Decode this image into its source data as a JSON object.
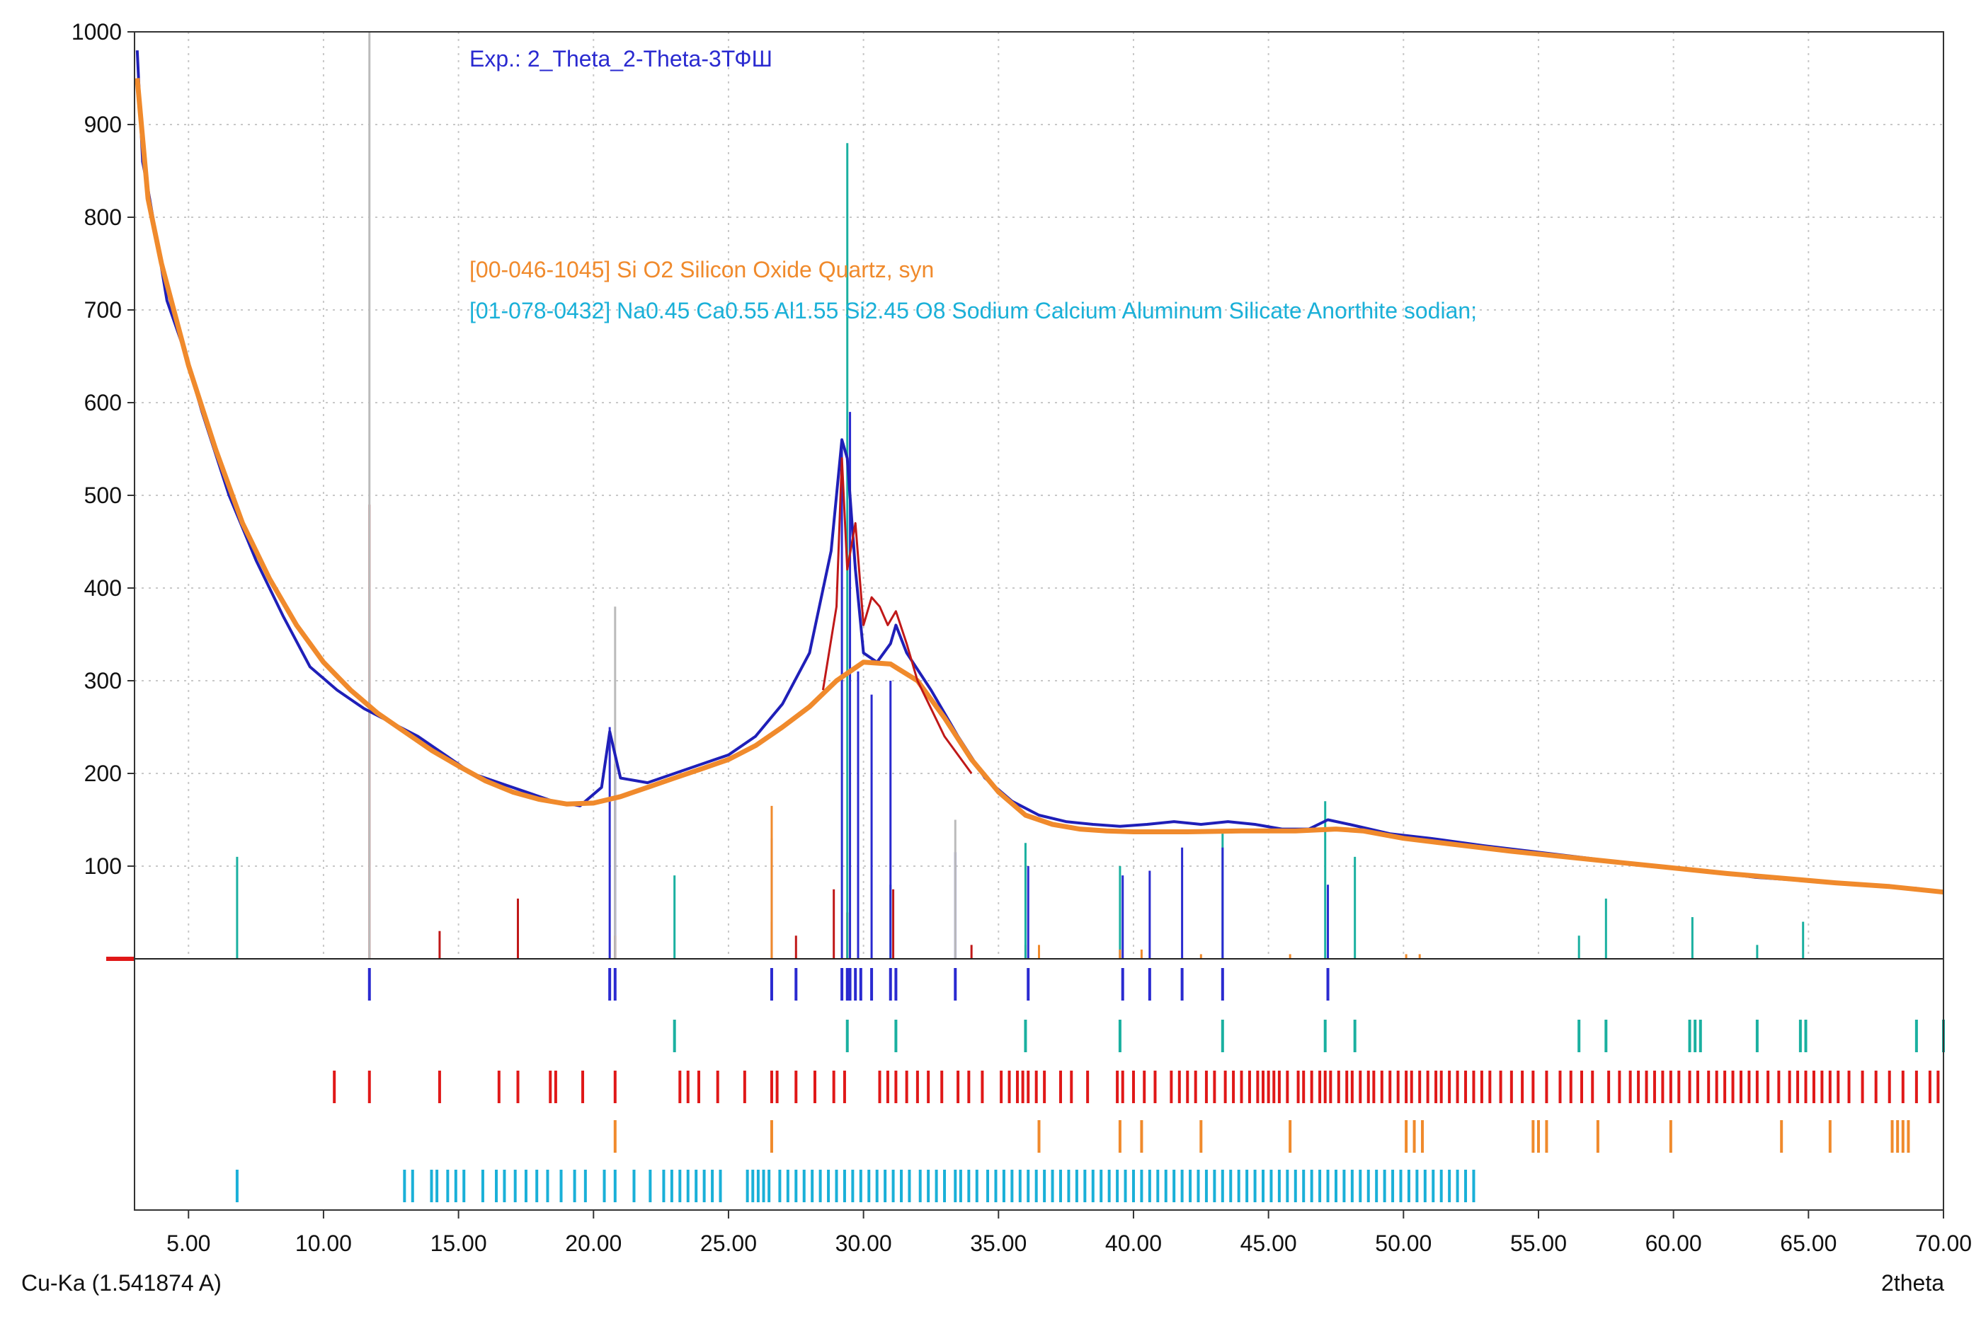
{
  "chart_data": {
    "type": "line",
    "x_axis_label": "2theta",
    "wavelength_label": "Cu-Ka (1.541874 A)",
    "xlim": [
      3.0,
      70.0
    ],
    "ylim": [
      0,
      1000
    ],
    "y_ticks": [
      100,
      200,
      300,
      400,
      500,
      600,
      700,
      800,
      900,
      1000
    ],
    "x_ticks": [
      5,
      10,
      15,
      20,
      25,
      30,
      35,
      40,
      45,
      50,
      55,
      60,
      65,
      70
    ],
    "x_tick_labels": [
      "5.00",
      "10.00",
      "15.00",
      "20.00",
      "25.00",
      "30.00",
      "35.00",
      "40.00",
      "45.00",
      "50.00",
      "55.00",
      "60.00",
      "65.00",
      "70.00"
    ],
    "y_tick_labels": [
      "100",
      "200",
      "300",
      "400",
      "500",
      "600",
      "700",
      "800",
      "900",
      "1000"
    ],
    "grid": true,
    "legend": [
      {
        "text": "Exp.: 2_Theta_2-Theta-3ТФШ",
        "color": "#2a2ad0"
      },
      {
        "text": "[00-046-1045] Si O2 Silicon Oxide Quartz, syn",
        "color": "#f08a2c"
      },
      {
        "text": "[01-078-0432] Na0.45 Ca0.55 Al1.55 Si2.45 O8 Sodium Calcium Aluminum Silicate Anorthite sodian;",
        "color": "#1ab0d8"
      }
    ],
    "series": [
      {
        "color": "#1f1fb8",
        "x": [
          3.1,
          3.3,
          3.5,
          3.8,
          4.2,
          4.8,
          5.5,
          6.5,
          7.5,
          8.5,
          9.5,
          10.5,
          11.5,
          12.5,
          13.5,
          14.5,
          15.5,
          16.5,
          17.5,
          18.5,
          19.5,
          20.3,
          20.6,
          21.0,
          22.0,
          23.0,
          24.0,
          25.0,
          26.0,
          27.0,
          28.0,
          28.8,
          29.2,
          29.4,
          29.7,
          30.0,
          30.5,
          31.0,
          31.2,
          31.6,
          32.5,
          33.5,
          34.5,
          35.5,
          36.5,
          37.5,
          38.5,
          39.5,
          40.5,
          41.5,
          42.5,
          43.5,
          44.5,
          45.5,
          46.5,
          47.2,
          48.0,
          49.5,
          51.0,
          53.0,
          55.0,
          57.0,
          59.0,
          61.0,
          63.0,
          65.0,
          67.0,
          69.0,
          70.0
        ],
        "y": [
          980,
          860,
          830,
          780,
          710,
          660,
          590,
          500,
          430,
          370,
          315,
          290,
          270,
          255,
          240,
          220,
          200,
          190,
          180,
          170,
          165,
          185,
          245,
          195,
          190,
          200,
          210,
          220,
          240,
          275,
          330,
          440,
          560,
          540,
          420,
          330,
          320,
          340,
          360,
          330,
          290,
          240,
          195,
          170,
          155,
          148,
          145,
          143,
          145,
          148,
          145,
          148,
          145,
          140,
          140,
          150,
          145,
          135,
          130,
          122,
          115,
          108,
          100,
          95,
          88,
          84,
          80,
          76,
          72
        ]
      },
      {
        "color": "#f08a2c",
        "x": [
          3.1,
          3.5,
          4.0,
          5.0,
          6.0,
          7.0,
          8.0,
          9.0,
          10.0,
          11.0,
          12.0,
          13.0,
          14.0,
          15.0,
          16.0,
          17.0,
          18.0,
          19.0,
          20.0,
          21.0,
          22.0,
          23.0,
          24.0,
          25.0,
          26.0,
          27.0,
          28.0,
          29.0,
          30.0,
          31.0,
          32.0,
          33.0,
          34.0,
          35.0,
          36.0,
          37.0,
          38.0,
          39.0,
          40.0,
          42.0,
          44.0,
          46.0,
          47.5,
          48.5,
          50.0,
          52.0,
          54.0,
          56.0,
          58.0,
          60.0,
          62.0,
          64.0,
          66.0,
          68.0,
          70.0
        ],
        "y": [
          950,
          820,
          750,
          640,
          550,
          470,
          410,
          360,
          320,
          290,
          265,
          245,
          225,
          208,
          192,
          180,
          172,
          167,
          168,
          175,
          185,
          195,
          205,
          215,
          230,
          250,
          272,
          300,
          320,
          318,
          300,
          260,
          215,
          180,
          155,
          145,
          140,
          138,
          137,
          137,
          138,
          138,
          140,
          138,
          130,
          123,
          116,
          110,
          104,
          98,
          92,
          87,
          82,
          78,
          72
        ]
      },
      {
        "color": "#c01818",
        "x": [
          28.5,
          29.0,
          29.2,
          29.4,
          29.7,
          30.0,
          30.3,
          30.6,
          30.9,
          31.2,
          31.6,
          32.0,
          32.5,
          33.0,
          34.0
        ],
        "y": [
          290,
          380,
          540,
          420,
          470,
          360,
          390,
          380,
          360,
          375,
          340,
          300,
          270,
          240,
          200
        ]
      }
    ],
    "sticks": [
      {
        "color": "#c01818",
        "x": [
          11.7,
          14.3,
          17.2,
          20.8,
          26.6,
          27.5,
          28.9,
          29.4,
          31.1,
          34.0,
          36.0,
          39.5
        ],
        "y": [
          490,
          30,
          65,
          25,
          40,
          25,
          75,
          50,
          75,
          15,
          15,
          10
        ]
      },
      {
        "color": "#1ab0a0",
        "x": [
          6.8,
          23.0,
          29.4,
          31.0,
          36.0,
          39.5,
          43.3,
          47.1,
          48.2,
          56.5,
          57.5,
          60.7,
          63.1,
          64.8
        ],
        "y": [
          110,
          90,
          880,
          80,
          125,
          100,
          135,
          170,
          110,
          25,
          65,
          45,
          15,
          40
        ]
      },
      {
        "color": "#2a2ad0",
        "x": [
          20.6,
          20.8,
          26.6,
          29.2,
          29.5,
          29.8,
          30.3,
          31.0,
          33.4,
          36.1,
          39.6,
          40.6,
          41.8,
          43.3,
          47.2
        ],
        "y": [
          250,
          210,
          130,
          560,
          590,
          310,
          285,
          300,
          115,
          100,
          90,
          95,
          120,
          120,
          80
        ]
      },
      {
        "color": "#f08a2c",
        "x": [
          20.8,
          26.6,
          36.5,
          39.5,
          40.3,
          42.5,
          45.8,
          50.1,
          50.6
        ],
        "y": [
          25,
          165,
          15,
          10,
          10,
          5,
          5,
          5,
          5
        ]
      },
      {
        "color": "#bbbbbb",
        "x": [
          11.7,
          20.8,
          33.4
        ],
        "y": [
          1000,
          380,
          150
        ]
      }
    ],
    "tick_rows": [
      {
        "color": "#2a2ad0",
        "x": [
          11.7,
          20.6,
          20.8,
          26.6,
          27.5,
          29.2,
          29.4,
          29.5,
          29.7,
          29.9,
          30.3,
          31.0,
          31.2,
          33.4,
          36.1,
          39.6,
          40.6,
          41.8,
          43.3,
          47.2
        ]
      },
      {
        "color": "#1ab0a0",
        "x": [
          23.0,
          29.4,
          31.2,
          36.0,
          39.5,
          43.3,
          47.1,
          48.2,
          56.5,
          57.5,
          60.6,
          60.8,
          61.0,
          63.1,
          64.7,
          64.9,
          69.0,
          70.0
        ]
      },
      {
        "color": "#e01818",
        "x": [
          10.4,
          11.7,
          14.3,
          16.5,
          17.2,
          18.4,
          18.6,
          19.6,
          20.8,
          23.2,
          23.5,
          23.9,
          24.6,
          25.6,
          26.6,
          26.8,
          27.5,
          28.2,
          28.9,
          29.3,
          30.6,
          30.9,
          31.2,
          31.6,
          32.0,
          32.4,
          32.9,
          33.5,
          33.9,
          34.4,
          35.1,
          35.4,
          35.7,
          35.9,
          36.1,
          36.4,
          36.7,
          37.3,
          37.7,
          38.3,
          39.4,
          39.6,
          40.0,
          40.4,
          40.8,
          41.4,
          41.7,
          42.0,
          42.3,
          42.7,
          43.0,
          43.4,
          43.7,
          44.0,
          44.3,
          44.6,
          44.8,
          45.0,
          45.2,
          45.4,
          45.7,
          46.1,
          46.3,
          46.6,
          46.9,
          47.1,
          47.3,
          47.6,
          47.9,
          48.1,
          48.4,
          48.7,
          48.9,
          49.2,
          49.5,
          49.8,
          50.1,
          50.3,
          50.6,
          50.9,
          51.2,
          51.4,
          51.7,
          52.0,
          52.3,
          52.6,
          52.9,
          53.2,
          53.6,
          54.0,
          54.4,
          54.8,
          55.3,
          55.8,
          56.2,
          56.6,
          57.0,
          57.6,
          58.0,
          58.4,
          58.7,
          59.0,
          59.3,
          59.6,
          59.9,
          60.2,
          60.6,
          60.9,
          61.3,
          61.6,
          61.9,
          62.2,
          62.5,
          62.8,
          63.1,
          63.5,
          63.9,
          64.3,
          64.6,
          64.9,
          65.2,
          65.5,
          65.8,
          66.1,
          66.5,
          67.0,
          67.5,
          68.0,
          68.5,
          69.0,
          69.5,
          69.8
        ]
      },
      {
        "color": "#f08a2c",
        "x": [
          20.8,
          26.6,
          36.5,
          39.5,
          40.3,
          42.5,
          45.8,
          50.1,
          50.4,
          50.7,
          54.8,
          55.0,
          55.3,
          57.2,
          59.9,
          64.0,
          65.8,
          68.1,
          68.3,
          68.5,
          68.7
        ]
      },
      {
        "color": "#1ab0d8",
        "x": [
          6.8,
          13.0,
          13.3,
          14.0,
          14.2,
          14.6,
          14.9,
          15.2,
          15.9,
          16.4,
          16.7,
          17.1,
          17.5,
          17.9,
          18.3,
          18.8,
          19.3,
          19.7,
          20.4,
          20.8,
          21.5,
          22.1,
          22.6,
          22.9,
          23.2,
          23.5,
          23.8,
          24.1,
          24.4,
          24.7,
          25.7,
          25.9,
          26.1,
          26.3,
          26.5,
          26.9,
          27.2,
          27.5,
          27.8,
          28.1,
          28.4,
          28.7,
          29.0,
          29.3,
          29.6,
          29.9,
          30.2,
          30.5,
          30.8,
          31.1,
          31.4,
          31.7,
          32.1,
          32.4,
          32.7,
          33.0,
          33.4,
          33.6,
          33.9,
          34.2,
          34.6,
          34.9,
          35.2,
          35.5,
          35.8,
          36.1,
          36.4,
          36.7,
          37.0,
          37.3,
          37.6,
          37.9,
          38.2,
          38.5,
          38.8,
          39.1,
          39.4,
          39.7,
          40.0,
          40.3,
          40.6,
          40.9,
          41.2,
          41.5,
          41.8,
          42.1,
          42.4,
          42.7,
          43.0,
          43.3,
          43.6,
          43.9,
          44.2,
          44.5,
          44.8,
          45.1,
          45.4,
          45.7,
          46.0,
          46.3,
          46.6,
          46.9,
          47.2,
          47.5,
          47.8,
          48.1,
          48.4,
          48.7,
          49.0,
          49.3,
          49.6,
          49.9,
          50.2,
          50.5,
          50.8,
          51.1,
          51.4,
          51.7,
          52.0,
          52.3,
          52.6
        ]
      }
    ]
  }
}
